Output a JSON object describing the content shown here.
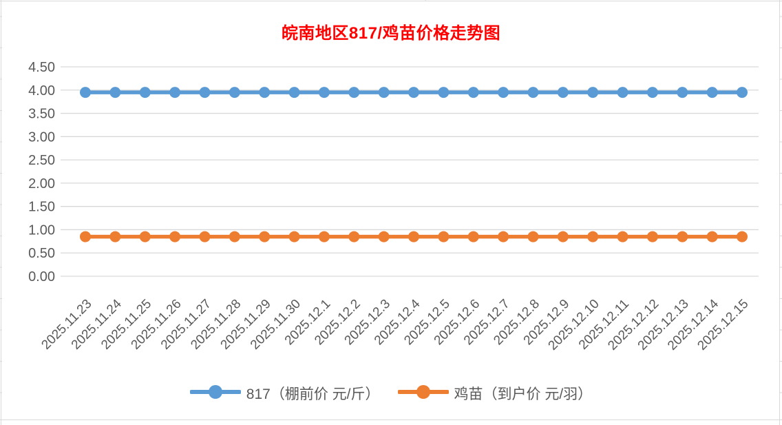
{
  "chart_data": {
    "type": "line",
    "title": "皖南地区817/鸡苗价格走势图",
    "title_color": "#FF0000",
    "categories": [
      "2025.11.23",
      "2025.11.24",
      "2025.11.25",
      "2025.11.26",
      "2025.11.27",
      "2025.11.28",
      "2025.11.29",
      "2025.11.30",
      "2025.12.1",
      "2025.12.2",
      "2025.12.3",
      "2025.12.4",
      "2025.12.5",
      "2025.12.6",
      "2025.12.7",
      "2025.12.8",
      "2025.12.9",
      "2025.12.10",
      "2025.12.11",
      "2025.12.12",
      "2025.12.13",
      "2025.12.14",
      "2025.12.15"
    ],
    "series": [
      {
        "name": "817（棚前价 元/斤）",
        "color": "#5B9BD5",
        "values": [
          3.95,
          3.95,
          3.95,
          3.95,
          3.95,
          3.95,
          3.95,
          3.95,
          3.95,
          3.95,
          3.95,
          3.95,
          3.95,
          3.95,
          3.95,
          3.95,
          3.95,
          3.95,
          3.95,
          3.95,
          3.95,
          3.95,
          3.95
        ]
      },
      {
        "name": "鸡苗（到户价 元/羽）",
        "color": "#ED7D31",
        "values": [
          0.85,
          0.85,
          0.85,
          0.85,
          0.85,
          0.85,
          0.85,
          0.85,
          0.85,
          0.85,
          0.85,
          0.85,
          0.85,
          0.85,
          0.85,
          0.85,
          0.85,
          0.85,
          0.85,
          0.85,
          0.85,
          0.85,
          0.85
        ]
      }
    ],
    "ylim": [
      0,
      4.5
    ],
    "ytick_step": 0.5,
    "ytick_format_decimals": 2,
    "grid": true,
    "gridline_color": "#D9D9D9",
    "axis_text_color": "#595959",
    "legend_position": "bottom",
    "x_label_rotation_deg": -45
  },
  "frame": {
    "sheet_gridline_color": "#D9D9D9"
  }
}
